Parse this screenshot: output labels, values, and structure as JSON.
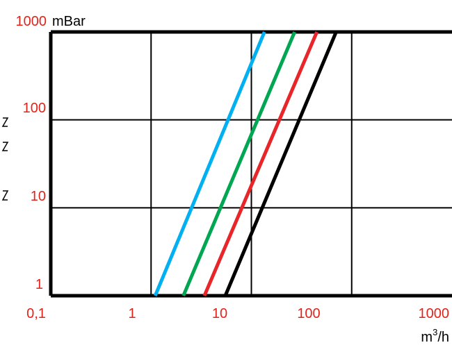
{
  "chart_data": {
    "type": "line",
    "x_scale": "log",
    "y_scale": "log",
    "xlim": [
      0.1,
      1000
    ],
    "ylim": [
      1,
      1000
    ],
    "x_ticks": [
      "0,1",
      "1",
      "10",
      "100",
      "1000"
    ],
    "y_ticks": [
      "1",
      "10",
      "100",
      "1000"
    ],
    "y_unit": "mBar",
    "x_unit": "m",
    "x_unit_sup": "3",
    "x_unit_tail": "/h",
    "grid": true,
    "legend": "none",
    "series": [
      {
        "color": "#00b0f0",
        "x": [
          1.1,
          13.5
        ],
        "y": [
          1,
          1000
        ]
      },
      {
        "color": "#00a651",
        "x": [
          2.1,
          27
        ],
        "y": [
          1,
          1000
        ]
      },
      {
        "color": "#e8262a",
        "x": [
          3.4,
          45
        ],
        "y": [
          1,
          1000
        ]
      },
      {
        "color": "#000000",
        "x": [
          5.5,
          70
        ],
        "y": [
          1,
          1000
        ]
      }
    ],
    "colors": {
      "tick_label": "#e2231a",
      "text": "#000000",
      "frame": "#000000"
    }
  }
}
